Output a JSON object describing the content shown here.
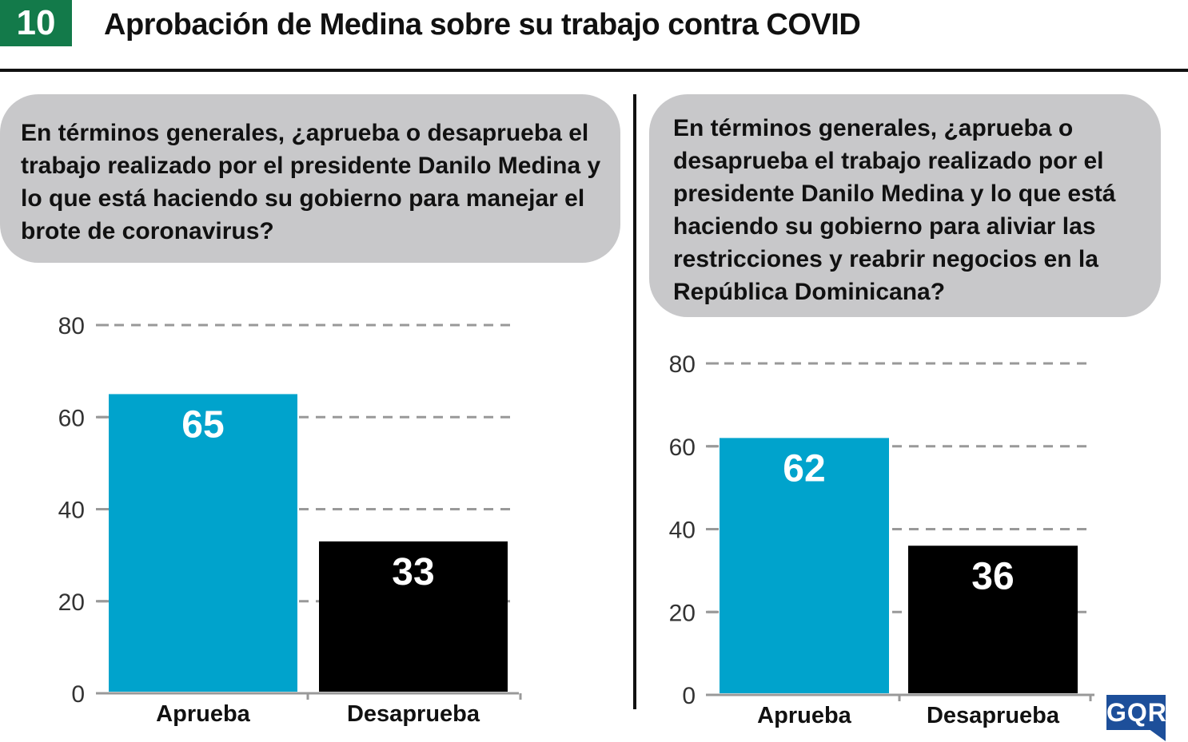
{
  "header": {
    "number": "10",
    "title": "Aprobación de Medina sobre su trabajo contra COVID"
  },
  "questions": {
    "left": "En términos generales, ¿aprueba o desaprueba el trabajo realizado por el presidente Danilo Medina  y lo que está haciendo su gobierno para manejar el brote de coronavirus?",
    "right": "En términos generales, ¿aprueba o desaprueba el trabajo realizado por el presidente Danilo Medina y lo que está haciendo su gobierno para aliviar las restricciones y reabrir negocios en la República Dominicana?"
  },
  "logo": {
    "text": "GQR",
    "color": "#1d4f9a"
  },
  "colors": {
    "aprueba": "#00a3cc",
    "desaprueba": "#000000",
    "badge": "#137a4a",
    "bubble": "#c8c8ca"
  },
  "chart_data": [
    {
      "type": "bar",
      "categories": [
        "Aprueba",
        "Desaprueba"
      ],
      "values": [
        65,
        33
      ],
      "ylim": [
        0,
        80
      ],
      "yticks": [
        0,
        20,
        40,
        60,
        80
      ],
      "grid": true,
      "data_labels": true
    },
    {
      "type": "bar",
      "categories": [
        "Aprueba",
        "Desaprueba"
      ],
      "values": [
        62,
        36
      ],
      "ylim": [
        0,
        80
      ],
      "yticks": [
        0,
        20,
        40,
        60,
        80
      ],
      "grid": true,
      "data_labels": true
    }
  ]
}
